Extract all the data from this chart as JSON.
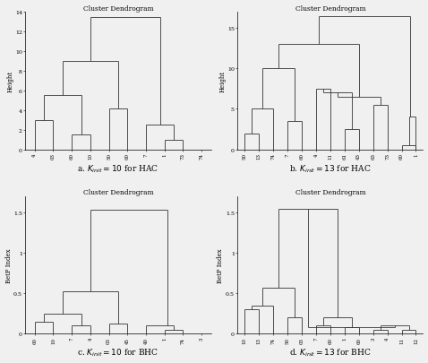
{
  "background_color": "#f0f0f0",
  "title": "Cluster Dendrogram",
  "line_color": "#333333",
  "line_width": 0.6,
  "subplot_labels": [
    "a. $K_{init} = 10$ for HAC",
    "b. $K_{init} = 13$ for HAC",
    "c. $K_{init} = 10$ for BHC",
    "d. $K_{init} = 13$ for BHC"
  ],
  "panel_a": {
    "ylabel": "Height",
    "ylim": [
      0,
      14
    ],
    "yticks": [
      0,
      2,
      4,
      6,
      8,
      10,
      12,
      14
    ],
    "xlabels": [
      "4",
      "03",
      "60",
      "10",
      "50",
      "60",
      "7",
      "1",
      "73",
      "74"
    ],
    "linkages": [
      [
        0,
        1,
        3.0,
        0,
        0
      ],
      [
        2,
        3,
        1.5,
        0,
        0
      ],
      [
        0.5,
        2.5,
        5.5,
        3.0,
        1.5
      ],
      [
        4,
        5,
        4.2,
        0,
        0
      ],
      [
        1.5,
        4.5,
        9.0,
        5.5,
        4.2
      ],
      [
        7,
        8,
        1.0,
        0,
        0
      ],
      [
        6,
        7.5,
        2.5,
        0,
        1.0
      ],
      [
        3.0,
        6.75,
        13.5,
        9.0,
        2.5
      ]
    ]
  },
  "panel_b": {
    "ylabel": "Height",
    "ylim": [
      0,
      17
    ],
    "yticks": [
      0,
      5,
      10,
      15
    ],
    "xlabels": [
      "50",
      "13",
      "74",
      "7",
      "60",
      "4",
      "11",
      "61",
      "43",
      "63",
      "73",
      "60",
      "1"
    ],
    "linkages": [
      [
        0,
        1,
        2.0,
        0,
        0
      ],
      [
        0.5,
        2,
        5.0,
        2.0,
        0
      ],
      [
        3,
        4,
        3.5,
        0,
        0
      ],
      [
        1.25,
        3.5,
        10.0,
        5.0,
        3.5
      ],
      [
        5,
        6,
        7.5,
        0,
        0
      ],
      [
        7,
        8,
        2.5,
        0,
        0
      ],
      [
        5.5,
        7.5,
        7.0,
        7.5,
        2.5
      ],
      [
        9,
        10,
        5.5,
        0,
        0
      ],
      [
        6.5,
        9.5,
        6.5,
        7.0,
        5.5
      ],
      [
        11,
        12,
        0.5,
        0,
        0
      ],
      [
        11.5,
        12,
        4.0,
        0.5,
        0
      ],
      [
        2.375,
        8.0,
        13.0,
        10.0,
        6.5
      ],
      [
        5.2,
        11.6,
        16.5,
        13.0,
        4.0
      ]
    ]
  },
  "panel_c": {
    "ylabel": "BetP Index",
    "ylim": [
      0,
      1.7
    ],
    "yticks": [
      0.0,
      0.5,
      1.0,
      1.5
    ],
    "xlabels": [
      "60",
      "10",
      "7",
      "4",
      "03",
      "45",
      "40",
      "1",
      "74",
      "3"
    ],
    "linkages": [
      [
        0,
        1,
        0.15,
        0,
        0
      ],
      [
        2,
        3,
        0.1,
        0,
        0
      ],
      [
        0.5,
        2.5,
        0.25,
        0.15,
        0.1
      ],
      [
        4,
        5,
        0.12,
        0,
        0
      ],
      [
        1.5,
        4.5,
        0.52,
        0.25,
        0.12
      ],
      [
        7,
        8,
        0.05,
        0,
        0
      ],
      [
        6,
        7.5,
        0.1,
        0,
        0.05
      ],
      [
        3.0,
        7.17,
        1.53,
        0.52,
        0.1
      ]
    ]
  },
  "panel_d": {
    "ylabel": "BetP Index",
    "ylim": [
      0,
      1.7
    ],
    "yticks": [
      0.0,
      0.5,
      1.0,
      1.5
    ],
    "xlabels": [
      "10",
      "13",
      "74",
      "50",
      "03",
      "7",
      "60",
      "1",
      "60",
      "3",
      "4",
      "11",
      "12"
    ],
    "linkages": [
      [
        0,
        1,
        0.3,
        0,
        0
      ],
      [
        0.5,
        2,
        0.35,
        0.3,
        0
      ],
      [
        3,
        4,
        0.2,
        0,
        0
      ],
      [
        1.25,
        3.5,
        0.57,
        0.35,
        0.2
      ],
      [
        5,
        6,
        0.1,
        0,
        0
      ],
      [
        7,
        8,
        0.08,
        0,
        0
      ],
      [
        5.5,
        7.5,
        0.2,
        0.1,
        0.08
      ],
      [
        2.375,
        6.5,
        1.55,
        0.57,
        0.2
      ],
      [
        9,
        10,
        0.05,
        0,
        0
      ],
      [
        11,
        12,
        0.05,
        0,
        0
      ],
      [
        9.5,
        11.5,
        0.1,
        0.05,
        0.05
      ],
      [
        4.4375,
        10.5,
        0.08,
        1.55,
        0.1
      ]
    ]
  }
}
